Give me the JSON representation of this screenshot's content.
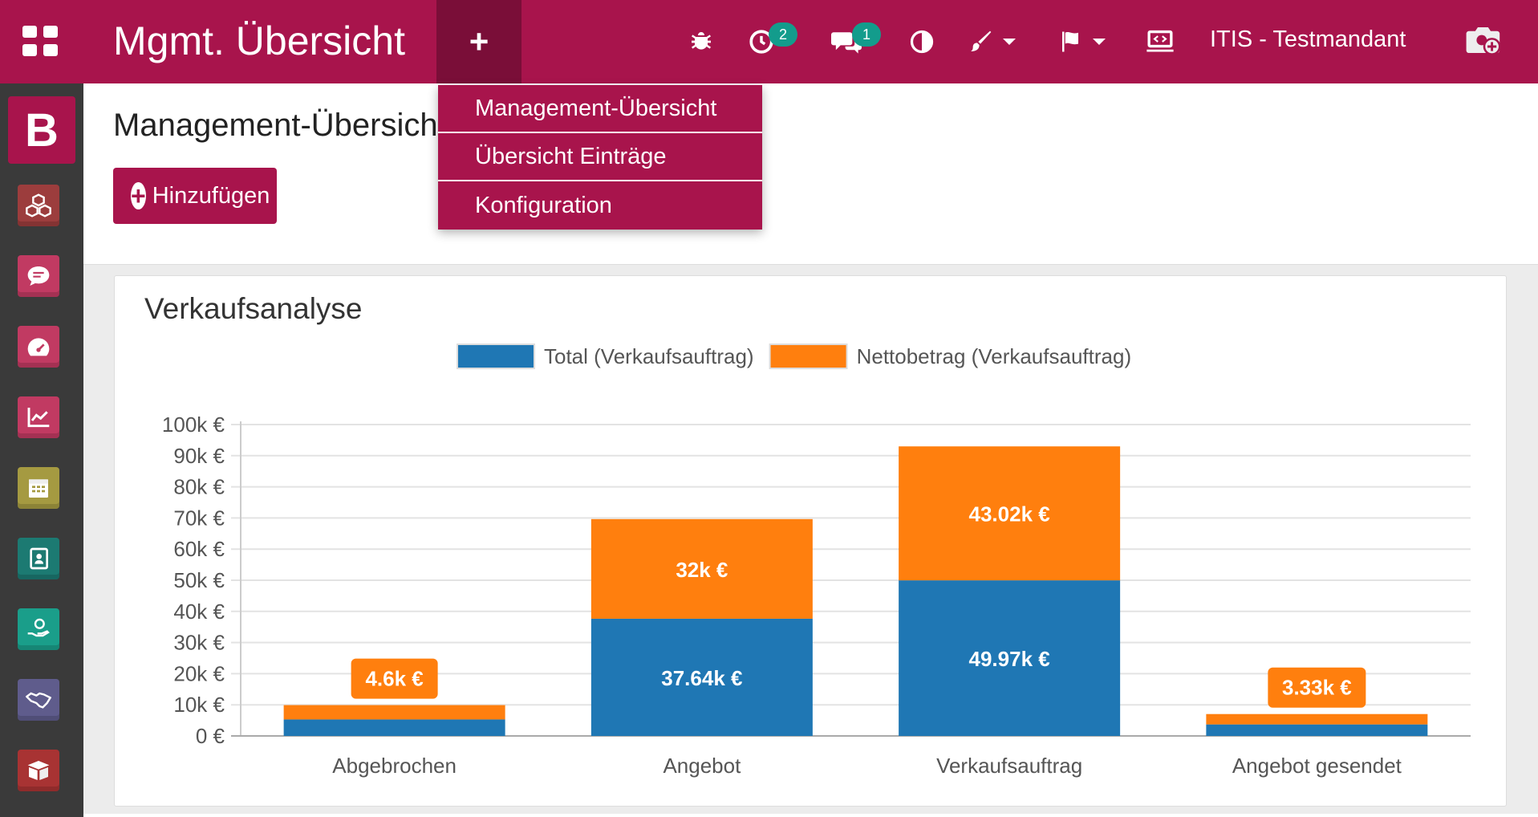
{
  "topbar": {
    "app_title": "Mgmt. Übersicht",
    "timer_badge": "2",
    "chat_badge": "1",
    "company": "ITIS - Testmandant"
  },
  "dropdown": {
    "items": [
      "Management-Übersicht",
      "Übersicht Einträge",
      "Konfiguration"
    ]
  },
  "main": {
    "page_title": "Management-Übersicht",
    "add_button": "Hinzufügen"
  },
  "sidebar": {
    "brand_letter": "B",
    "apps": [
      {
        "icon": "cubes-icon",
        "color": "#9c3d3d"
      },
      {
        "icon": "chat-icon",
        "color": "#c13a62"
      },
      {
        "icon": "dashboard-gauge-icon",
        "color": "#c13a62"
      },
      {
        "icon": "chart-line-icon",
        "color": "#c13a62"
      },
      {
        "icon": "calendar-icon",
        "color": "#a59a41"
      },
      {
        "icon": "address-book-icon",
        "color": "#1c7a72"
      },
      {
        "icon": "hand-coin-icon",
        "color": "#1a9e8a"
      },
      {
        "icon": "handshake-icon",
        "color": "#5f5c8c"
      },
      {
        "icon": "box-icon",
        "color": "#a83333"
      }
    ]
  },
  "colors": {
    "brand": "#a8144c",
    "brand_dark": "#7a0e38",
    "badge": "#139c8c",
    "series_total": "#1f77b4",
    "series_netto": "#ff7f0e"
  },
  "chart_data": {
    "type": "bar",
    "stacked": true,
    "title": "Verkaufsanalyse",
    "categories": [
      "Abgebrochen",
      "Angebot",
      "Verkaufsauftrag",
      "Angebot gesendet"
    ],
    "series": [
      {
        "name": "Total (Verkaufsauftrag)",
        "values": [
          5300,
          37640,
          49970,
          3700
        ],
        "labels": [
          "",
          "37.64k €",
          "49.97k €",
          ""
        ]
      },
      {
        "name": "Nettobetrag (Verkaufsauftrag)",
        "values": [
          4600,
          32000,
          43020,
          3330
        ],
        "labels": [
          "4.6k €",
          "32k €",
          "43.02k €",
          "3.33k €"
        ]
      }
    ],
    "yticks": [
      "0 €",
      "10k €",
      "20k €",
      "30k €",
      "40k €",
      "50k €",
      "60k €",
      "70k €",
      "80k €",
      "90k €",
      "100k €"
    ],
    "ylim": [
      0,
      100000
    ],
    "legend": "top-center",
    "grid": true
  }
}
